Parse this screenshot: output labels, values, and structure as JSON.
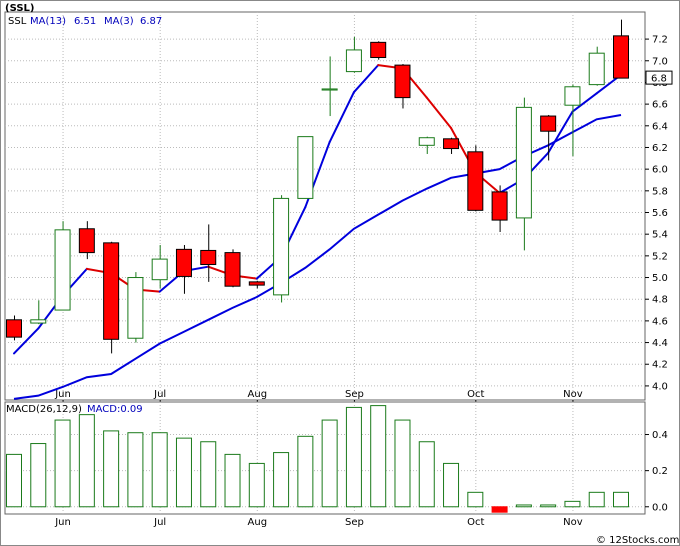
{
  "title": "(SSL)",
  "footer": "© 12Stocks.com",
  "legend": {
    "symbol": "SSL",
    "ma13_label": "MA(13)",
    "ma13_value": "6.51",
    "ma3_label": "MA(3)",
    "ma3_value": "6.87"
  },
  "macd_legend": {
    "label": "MACD(26,12,9)",
    "value_label": "MACD:0.09"
  },
  "last_price_tag": "6.8",
  "colors": {
    "up_candle": "#1a7a1a",
    "down_candle": "#ff0000",
    "ma_blue": "#0000dd",
    "ma_red": "#dd0000",
    "grid": "#bbbbbb",
    "frame": "#666666",
    "legend_text": "#0000bb",
    "macd_bar": "#1a7a1a",
    "macd_neg": "#ff0000"
  },
  "chart_data": [
    {
      "type": "candlestick",
      "ylim": [
        3.87,
        7.45
      ],
      "yticks": [
        "4.0",
        "4.2",
        "4.4",
        "4.6",
        "4.8",
        "5.0",
        "5.2",
        "5.4",
        "5.6",
        "5.8",
        "6.0",
        "6.2",
        "6.4",
        "6.6",
        "6.8",
        "7.0",
        "7.2"
      ],
      "xticks": [
        {
          "label": "Jun",
          "index": 2
        },
        {
          "label": "Jul",
          "index": 6
        },
        {
          "label": "Aug",
          "index": 10
        },
        {
          "label": "Sep",
          "index": 14
        },
        {
          "label": "Oct",
          "index": 19
        },
        {
          "label": "Nov",
          "index": 23
        }
      ],
      "candles": [
        {
          "o": 4.61,
          "h": 4.65,
          "l": 4.42,
          "c": 4.45
        },
        {
          "o": 4.58,
          "h": 4.79,
          "l": 4.57,
          "c": 4.61
        },
        {
          "o": 4.7,
          "h": 5.52,
          "l": 4.7,
          "c": 5.44
        },
        {
          "o": 5.45,
          "h": 5.52,
          "l": 5.17,
          "c": 5.23
        },
        {
          "o": 5.32,
          "h": 5.33,
          "l": 4.3,
          "c": 4.43
        },
        {
          "o": 4.44,
          "h": 5.05,
          "l": 4.4,
          "c": 5.0
        },
        {
          "o": 4.98,
          "h": 5.3,
          "l": 4.9,
          "c": 5.17
        },
        {
          "o": 5.26,
          "h": 5.3,
          "l": 4.85,
          "c": 5.01
        },
        {
          "o": 5.25,
          "h": 5.49,
          "l": 4.96,
          "c": 5.12
        },
        {
          "o": 5.23,
          "h": 5.26,
          "l": 4.91,
          "c": 4.92
        },
        {
          "o": 4.96,
          "h": 4.97,
          "l": 4.9,
          "c": 4.93
        },
        {
          "o": 4.84,
          "h": 5.76,
          "l": 4.77,
          "c": 5.73
        },
        {
          "o": 5.73,
          "h": 6.3,
          "l": 5.73,
          "c": 6.3
        },
        {
          "o": 6.73,
          "h": 7.04,
          "l": 6.49,
          "c": 6.74
        },
        {
          "o": 6.9,
          "h": 7.22,
          "l": 6.89,
          "c": 7.1
        },
        {
          "o": 7.17,
          "h": 7.18,
          "l": 7.01,
          "c": 7.03
        },
        {
          "o": 6.96,
          "h": 6.97,
          "l": 6.56,
          "c": 6.66
        },
        {
          "o": 6.22,
          "h": 6.3,
          "l": 6.14,
          "c": 6.29
        },
        {
          "o": 6.28,
          "h": 6.29,
          "l": 6.14,
          "c": 6.19
        },
        {
          "o": 6.16,
          "h": 6.22,
          "l": 5.61,
          "c": 5.62
        },
        {
          "o": 5.79,
          "h": 5.85,
          "l": 5.42,
          "c": 5.53
        },
        {
          "o": 5.55,
          "h": 6.66,
          "l": 5.25,
          "c": 6.57
        },
        {
          "o": 6.49,
          "h": 6.5,
          "l": 6.08,
          "c": 6.35
        },
        {
          "o": 6.59,
          "h": 6.78,
          "l": 6.12,
          "c": 6.76
        },
        {
          "o": 6.78,
          "h": 7.13,
          "l": 6.77,
          "c": 7.07
        },
        {
          "o": 7.23,
          "h": 7.38,
          "l": 6.84,
          "c": 6.84
        }
      ],
      "series": [
        {
          "name": "MA(13)",
          "values": [
            3.88,
            3.91,
            3.99,
            4.08,
            4.11,
            4.25,
            4.39,
            4.5,
            4.61,
            4.72,
            4.82,
            4.95,
            5.09,
            5.26,
            5.45,
            5.58,
            5.71,
            5.82,
            5.92,
            5.96,
            6.0,
            6.12,
            6.22,
            6.34,
            6.46,
            6.5
          ]
        },
        {
          "name": "MA(3)",
          "values": [
            4.3,
            4.53,
            4.83,
            5.08,
            5.04,
            4.89,
            4.87,
            5.06,
            5.1,
            5.02,
            4.99,
            5.19,
            5.65,
            6.25,
            6.71,
            6.96,
            6.93,
            6.66,
            6.38,
            5.97,
            5.78,
            5.91,
            6.15,
            6.53,
            6.7,
            6.87
          ]
        }
      ]
    },
    {
      "type": "bar",
      "ylim": [
        -0.04,
        0.58
      ],
      "yticks": [
        "0.0",
        "0.2",
        "0.4"
      ],
      "values": [
        0.29,
        0.35,
        0.48,
        0.51,
        0.42,
        0.41,
        0.41,
        0.38,
        0.36,
        0.29,
        0.24,
        0.3,
        0.39,
        0.48,
        0.55,
        0.56,
        0.48,
        0.36,
        0.24,
        0.08,
        -0.03,
        0.01,
        0.01,
        0.03,
        0.08,
        0.08
      ]
    }
  ]
}
